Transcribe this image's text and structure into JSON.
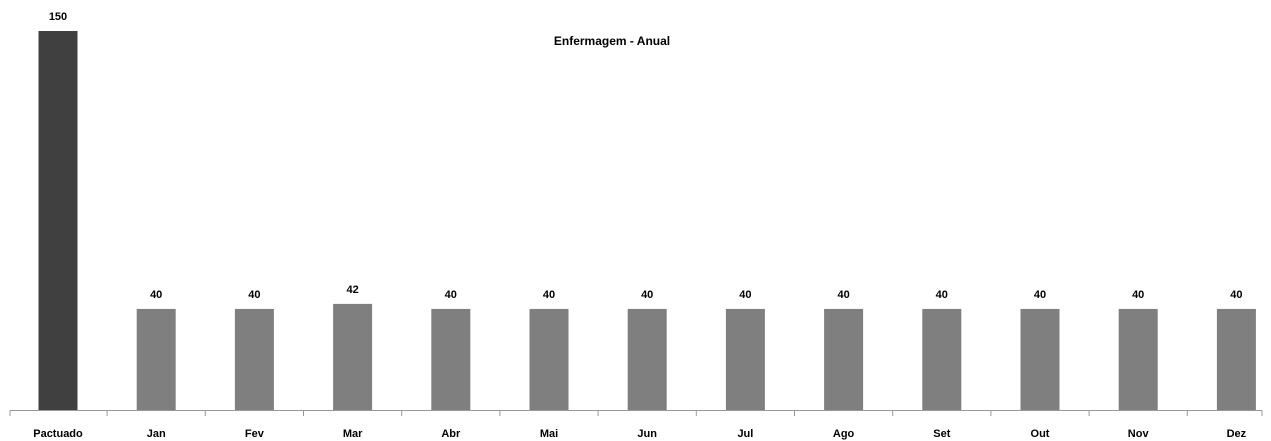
{
  "chart_data": {
    "type": "bar",
    "title": "Enfermagem - Anual",
    "categories": [
      "Pactuado",
      "Jan",
      "Fev",
      "Mar",
      "Abr",
      "Mai",
      "Jun",
      "Jul",
      "Ago",
      "Set",
      "Out",
      "Nov",
      "Dez"
    ],
    "values": [
      150,
      40,
      40,
      42,
      40,
      40,
      40,
      40,
      40,
      40,
      40,
      40,
      40
    ],
    "colors": [
      "#404040",
      "#7f7f7f",
      "#7f7f7f",
      "#7f7f7f",
      "#7f7f7f",
      "#7f7f7f",
      "#7f7f7f",
      "#7f7f7f",
      "#7f7f7f",
      "#7f7f7f",
      "#7f7f7f",
      "#7f7f7f",
      "#7f7f7f"
    ],
    "ylim": [
      0,
      150
    ],
    "grid": false
  }
}
